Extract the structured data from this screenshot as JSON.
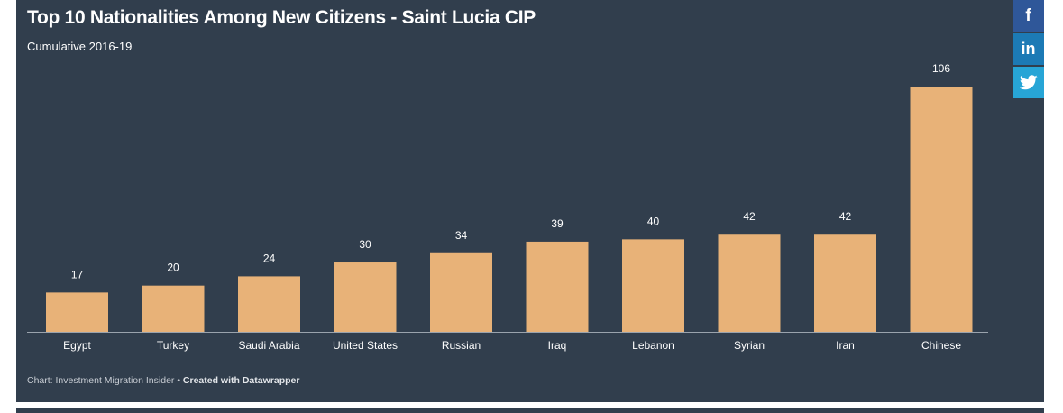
{
  "chart_data": {
    "type": "bar",
    "title": "Top 10 Nationalities Among New Citizens - Saint Lucia CIP",
    "subtitle": "Cumulative 2016-19",
    "categories": [
      "Egypt",
      "Turkey",
      "Saudi Arabia",
      "United States",
      "Russian",
      "Iraq",
      "Lebanon",
      "Syrian",
      "Iran",
      "Chinese"
    ],
    "values": [
      17,
      20,
      24,
      30,
      34,
      39,
      40,
      42,
      42,
      106
    ],
    "ylim": [
      0,
      106
    ],
    "grid": false,
    "bar_color": "#e8b278"
  },
  "footer": {
    "source": "Chart: Investment Migration Insider • ",
    "credit": "Created with Datawrapper"
  },
  "social": {
    "facebook_icon": "facebook-icon",
    "linkedin_icon": "linkedin-icon",
    "twitter_icon": "twitter-icon",
    "facebook_glyph": "f",
    "linkedin_glyph": "in"
  },
  "colors": {
    "panel_bg": "#313e4d",
    "facebook": "#2f5799",
    "linkedin": "#1c7ab5",
    "twitter": "#27a5d6"
  }
}
